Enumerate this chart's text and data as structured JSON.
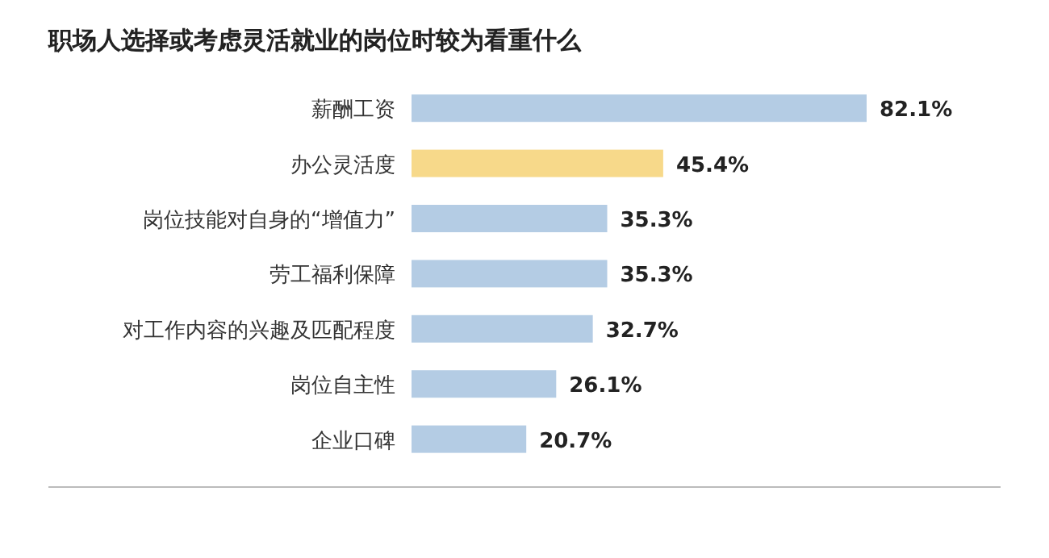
{
  "chart_data": {
    "type": "bar",
    "orientation": "horizontal",
    "title": "职场人选择或考虑灵活就业的岗位时较为看重什么",
    "categories": [
      "薪酬工资",
      "办公灵活度",
      "岗位技能对自身的“增值力”",
      "劳工福利保障",
      "对工作内容的兴趣及匹配程度",
      "岗位自主性",
      "企业口碑"
    ],
    "values": [
      82.1,
      45.4,
      35.3,
      35.3,
      32.7,
      26.1,
      20.7
    ],
    "value_labels": [
      "82.1%",
      "45.4%",
      "35.3%",
      "35.3%",
      "32.7%",
      "26.1%",
      "20.7%"
    ],
    "colors": [
      "#b4cce4",
      "#f7d98a",
      "#b4cce4",
      "#b4cce4",
      "#b4cce4",
      "#b4cce4",
      "#b4cce4"
    ]
  }
}
